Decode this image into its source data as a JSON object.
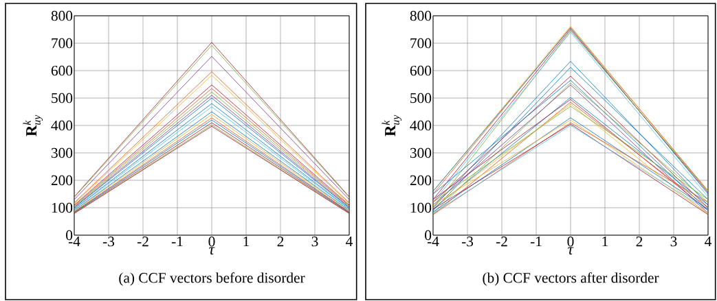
{
  "chart_data": [
    {
      "type": "line",
      "title": "(a) CCF vectors before disorder",
      "xlabel": "\\tau",
      "ylabel": "\\mathbf{R}_{uy}^{k}",
      "x": [
        -4,
        0,
        4
      ],
      "xlim": [
        -4,
        4
      ],
      "ylim": [
        0,
        800
      ],
      "xticks": [
        -4,
        -3,
        -2,
        -1,
        0,
        1,
        2,
        3,
        4
      ],
      "yticks": [
        0,
        100,
        200,
        300,
        400,
        500,
        600,
        700,
        800
      ],
      "grid": true,
      "series": [
        {
          "color": "#A2142F",
          "values": [
            140,
            703,
            140
          ]
        },
        {
          "color": "#77AC30",
          "values": [
            138,
            692,
            138
          ]
        },
        {
          "color": "#7E2F8E",
          "values": [
            130,
            652,
            130
          ]
        },
        {
          "color": "#D95319",
          "values": [
            118,
            596,
            118
          ]
        },
        {
          "color": "#EDB120",
          "values": [
            115,
            583,
            115
          ]
        },
        {
          "color": "#A2142F",
          "values": [
            110,
            548,
            110
          ]
        },
        {
          "color": "#D95319",
          "values": [
            107,
            535,
            107
          ]
        },
        {
          "color": "#77AC30",
          "values": [
            105,
            522,
            105
          ]
        },
        {
          "color": "#7E2F8E",
          "values": [
            102,
            510,
            102
          ]
        },
        {
          "color": "#0072BD",
          "values": [
            100,
            500,
            100
          ]
        },
        {
          "color": "#0072BD",
          "values": [
            96,
            480,
            96
          ]
        },
        {
          "color": "#4DBEEE",
          "values": [
            94,
            468,
            94
          ]
        },
        {
          "color": "#0072BD",
          "values": [
            90,
            450,
            90
          ]
        },
        {
          "color": "#EDB120",
          "values": [
            88,
            440,
            88
          ]
        },
        {
          "color": "#D95319",
          "values": [
            85,
            428,
            85
          ]
        },
        {
          "color": "#0072BD",
          "values": [
            84,
            420,
            84
          ]
        },
        {
          "color": "#A2142F",
          "values": [
            82,
            410,
            82
          ]
        },
        {
          "color": "#77AC30",
          "values": [
            80,
            402,
            80
          ]
        },
        {
          "color": "#A2142F",
          "values": [
            79,
            397,
            79
          ]
        }
      ]
    },
    {
      "type": "line",
      "title": "(b) CCF vectors after disorder",
      "xlabel": "\\tau",
      "ylabel": "\\mathbf{R}_{uy}^{k}",
      "x": [
        -4,
        0,
        4
      ],
      "xlim": [
        -4,
        4
      ],
      "ylim": [
        0,
        800
      ],
      "xticks": [
        -4,
        -3,
        -2,
        -1,
        0,
        1,
        2,
        3,
        4
      ],
      "yticks": [
        0,
        100,
        200,
        300,
        400,
        500,
        600,
        700,
        800
      ],
      "grid": true,
      "series": [
        {
          "color": "#EDB120",
          "values": [
            160,
            762,
            160
          ]
        },
        {
          "color": "#D95319",
          "values": [
            150,
            758,
            162
          ]
        },
        {
          "color": "#0072BD",
          "values": [
            160,
            755,
            150
          ]
        },
        {
          "color": "#A2142F",
          "values": [
            130,
            750,
            155
          ]
        },
        {
          "color": "#77AC30",
          "values": [
            100,
            745,
            160
          ]
        },
        {
          "color": "#4DBEEE",
          "values": [
            120,
            740,
            140
          ]
        },
        {
          "color": "#0072BD",
          "values": [
            100,
            634,
            110
          ]
        },
        {
          "color": "#0072BD",
          "values": [
            90,
            612,
            130
          ]
        },
        {
          "color": "#A2142F",
          "values": [
            120,
            580,
            100
          ]
        },
        {
          "color": "#0072BD",
          "values": [
            150,
            565,
            90
          ]
        },
        {
          "color": "#77AC30",
          "values": [
            80,
            555,
            120
          ]
        },
        {
          "color": "#7E2F8E",
          "values": [
            110,
            548,
            80
          ]
        },
        {
          "color": "#0072BD",
          "values": [
            95,
            502,
            110
          ]
        },
        {
          "color": "#A2142F",
          "values": [
            130,
            495,
            90
          ]
        },
        {
          "color": "#D95319",
          "values": [
            75,
            485,
            100
          ]
        },
        {
          "color": "#EDB120",
          "values": [
            100,
            478,
            75
          ]
        },
        {
          "color": "#77AC30",
          "values": [
            120,
            470,
            130
          ]
        },
        {
          "color": "#0072BD",
          "values": [
            85,
            428,
            95
          ]
        },
        {
          "color": "#EDB120",
          "values": [
            110,
            420,
            80
          ]
        },
        {
          "color": "#D95319",
          "values": [
            75,
            410,
            120
          ]
        },
        {
          "color": "#A2142F",
          "values": [
            95,
            405,
            75
          ]
        },
        {
          "color": "#4DBEEE",
          "values": [
            80,
            400,
            90
          ]
        }
      ]
    }
  ]
}
